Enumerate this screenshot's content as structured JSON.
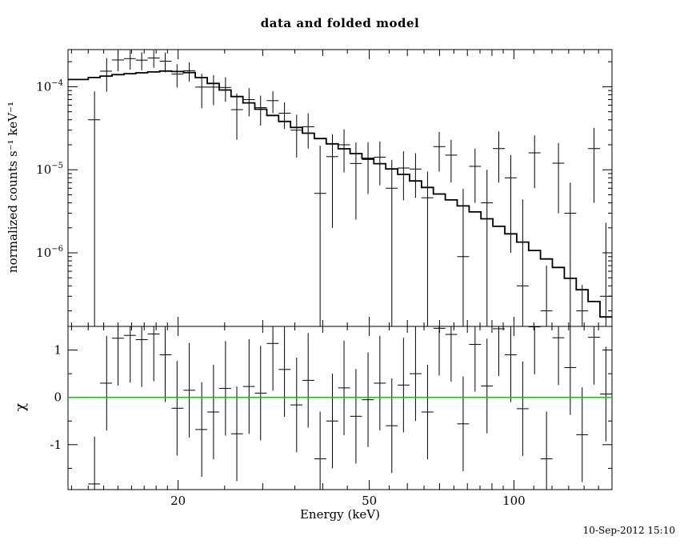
{
  "timestamp": "10-Sep-2012 15:10",
  "colors": {
    "frame": "#000000",
    "data": "#000000",
    "model": "#000000",
    "zero_line": "#00cc00",
    "background": "#ffffff"
  },
  "chart_data": {
    "type": "xspec_data_and_folded_model",
    "title": "data and folded model",
    "legend": "none",
    "grid": "off",
    "x_axis": {
      "label": "Energy (keV)",
      "scale": "log",
      "range": [
        11.8,
        160
      ],
      "major_ticks": [
        {
          "v": 20,
          "label": "20"
        },
        {
          "v": 50,
          "label": "50"
        },
        {
          "v": 100,
          "label": "100"
        }
      ],
      "medium_ticks": [
        30,
        40,
        60,
        70,
        80,
        90
      ],
      "minor_ticks": [
        12,
        13,
        14,
        15,
        16,
        17,
        18,
        19,
        25,
        35,
        45,
        55,
        65,
        75,
        85,
        95,
        110,
        120,
        130,
        140,
        150
      ]
    },
    "top_panel": {
      "ylabel": "normalized counts s⁻¹ keV⁻¹",
      "scale": "log",
      "range": [
        1.3e-07,
        0.00028
      ],
      "major_ticks": [
        {
          "v": 0.0001,
          "mantissa": "10",
          "exponent": "−4"
        },
        {
          "v": 1e-05,
          "mantissa": "10",
          "exponent": "−5"
        },
        {
          "v": 1e-06,
          "mantissa": "10",
          "exponent": "−6"
        }
      ]
    },
    "bottom_panel": {
      "ylabel": "χ",
      "scale": "linear",
      "range": [
        -1.95,
        1.5
      ],
      "major_ticks": [
        {
          "v": 1,
          "label": "1"
        },
        {
          "v": 0,
          "label": "0"
        },
        {
          "v": -1,
          "label": "-1"
        }
      ],
      "minor_ticks": [
        -1.5,
        -0.5,
        0.5
      ],
      "zero_line_value": 0
    },
    "bin_edges": [
      11.8,
      13.0,
      13.76,
      14.57,
      15.43,
      16.33,
      17.29,
      18.31,
      19.38,
      20.52,
      21.72,
      23.0,
      24.35,
      25.78,
      27.29,
      28.89,
      30.59,
      32.38,
      34.28,
      36.29,
      38.42,
      40.68,
      43.07,
      45.6,
      48.27,
      51.11,
      54.11,
      57.28,
      60.65,
      64.21,
      67.98,
      71.97,
      76.19,
      80.66,
      85.4,
      90.41,
      95.72,
      101.34,
      107.29,
      113.58,
      120.25,
      127.31,
      134.78,
      142.69,
      151.07,
      159.93
    ],
    "model_anchors": [
      [
        11.8,
        0.000118
      ],
      [
        15,
        0.00014
      ],
      [
        19,
        0.000155
      ],
      [
        21,
        0.00015
      ],
      [
        23,
        0.00012
      ],
      [
        27,
        7.2e-05
      ],
      [
        31.5,
        4.5e-05
      ],
      [
        36.6,
        2.9e-05
      ],
      [
        42.7,
        1.95e-05
      ],
      [
        50,
        1.35e-05
      ],
      [
        58.5,
        9e-06
      ],
      [
        70,
        5.1e-06
      ],
      [
        85,
        2.9e-06
      ],
      [
        100,
        1.6e-06
      ],
      [
        125,
        6.4e-07
      ],
      [
        146,
        2.7e-07
      ],
      [
        161,
        1.3e-07
      ]
    ],
    "points": [
      {
        "e": 13.4,
        "rate": 4e-05,
        "err": 4.8e-05,
        "chi": -1.83
      },
      {
        "e": 14.2,
        "rate": 0.000154,
        "err": 6.7e-05,
        "chi": 0.3
      },
      {
        "e": 15.0,
        "rate": 0.00021,
        "err": 5.6e-05,
        "chi": 1.25
      },
      {
        "e": 15.9,
        "rate": 0.000218,
        "err": 5.7e-05,
        "chi": 1.31
      },
      {
        "e": 16.8,
        "rate": 0.000209,
        "err": 5.1e-05,
        "chi": 1.22
      },
      {
        "e": 17.8,
        "rate": 0.000222,
        "err": 5.3e-05,
        "chi": 1.34
      },
      {
        "e": 18.8,
        "rate": 0.000203,
        "err": 5.4e-05,
        "chi": 0.9
      },
      {
        "e": 19.9,
        "rate": 0.000142,
        "err": 4.4e-05,
        "chi": -0.23
      },
      {
        "e": 21.1,
        "rate": 0.000156,
        "err": 4.1e-05,
        "chi": 0.15
      },
      {
        "e": 22.4,
        "rate": 9.9e-05,
        "err": 4.4e-05,
        "chi": -0.68
      },
      {
        "e": 23.7,
        "rate": 9.9e-05,
        "err": 3.9e-05,
        "chi": -0.31
      },
      {
        "e": 25.1,
        "rate": 9.8e-05,
        "err": 3.2e-05,
        "chi": 0.19
      },
      {
        "e": 26.5,
        "rate": 5.3e-05,
        "err": 3e-05,
        "chi": -0.77
      },
      {
        "e": 28.1,
        "rate": 7e-05,
        "err": 2.6e-05,
        "chi": 0.23
      },
      {
        "e": 29.7,
        "rate": 5.6e-05,
        "err": 2.2e-05,
        "chi": 0.09
      },
      {
        "e": 31.5,
        "rate": 6.8e-05,
        "err": 2e-05,
        "chi": 1.14
      },
      {
        "e": 33.3,
        "rate": 4.8e-05,
        "err": 1.7e-05,
        "chi": 0.59
      },
      {
        "e": 35.3,
        "rate": 3e-05,
        "err": 1.6e-05,
        "chi": -0.16
      },
      {
        "e": 37.3,
        "rate": 3.3e-05,
        "err": 1.5e-05,
        "chi": 0.36
      },
      {
        "e": 39.5,
        "rate": 5.2e-06,
        "err": 1.43e-05,
        "chi": -1.3
      },
      {
        "e": 41.9,
        "rate": 1.44e-05,
        "err": 1.24e-05,
        "chi": -0.5
      },
      {
        "e": 44.3,
        "rate": 2e-05,
        "err": 1.07e-05,
        "chi": 0.2
      },
      {
        "e": 46.9,
        "rate": 1.19e-05,
        "err": 9.4e-06,
        "chi": -0.4
      },
      {
        "e": 49.7,
        "rate": 1.33e-05,
        "err": 8.2e-06,
        "chi": -0.05
      },
      {
        "e": 52.6,
        "rate": 1.42e-05,
        "err": 7.7e-06,
        "chi": 0.3
      },
      {
        "e": 55.7,
        "rate": 6e-06,
        "err": 7.2e-06,
        "chi": -0.6
      },
      {
        "e": 58.9,
        "rate": 1.05e-05,
        "err": 6.2e-06,
        "chi": 0.26
      },
      {
        "e": 62.4,
        "rate": 1.02e-05,
        "err": 5.6e-06,
        "chi": 0.5
      },
      {
        "e": 66.1,
        "rate": 4.6e-06,
        "err": 4.9e-06,
        "chi": -0.31
      },
      {
        "e": 69.9,
        "rate": 1.9e-05,
        "err": 9.5e-06,
        "chi": 1.46
      },
      {
        "e": 74.0,
        "rate": 1.5e-05,
        "err": 8e-06,
        "chi": 1.33
      },
      {
        "e": 78.4,
        "rate": 9e-07,
        "err": 5e-06,
        "chi": -0.56
      },
      {
        "e": 83.0,
        "rate": 1.1e-05,
        "err": 7e-06,
        "chi": 1.12
      },
      {
        "e": 87.9,
        "rate": 4e-06,
        "err": 6e-06,
        "chi": 0.24
      },
      {
        "e": 93.0,
        "rate": 1.8e-05,
        "err": 1.1e-05,
        "chi": 1.45
      },
      {
        "e": 98.5,
        "rate": 8e-06,
        "err": 7e-06,
        "chi": 0.9
      },
      {
        "e": 104.3,
        "rate": 4e-07,
        "err": 4e-06,
        "chi": -0.24
      },
      {
        "e": 110.4,
        "rate": 1.6e-05,
        "err": 1e-05,
        "chi": 1.49
      },
      {
        "e": 116.9,
        "rate": 2e-07,
        "err": 5e-07,
        "chi": -1.3
      },
      {
        "e": 123.8,
        "rate": 1.2e-05,
        "err": 9e-06,
        "chi": 1.26
      },
      {
        "e": 131.0,
        "rate": 3e-06,
        "err": 4e-06,
        "chi": 0.63
      },
      {
        "e": 138.7,
        "rate": 2e-07,
        "err": 2.1e-07,
        "chi": -0.79
      },
      {
        "e": 146.8,
        "rate": 1.8e-05,
        "err": 1.4e-05,
        "chi": 1.27
      },
      {
        "e": 155.4,
        "rate": 3e-07,
        "err": 2e-06,
        "chi": 0.07
      }
    ]
  }
}
